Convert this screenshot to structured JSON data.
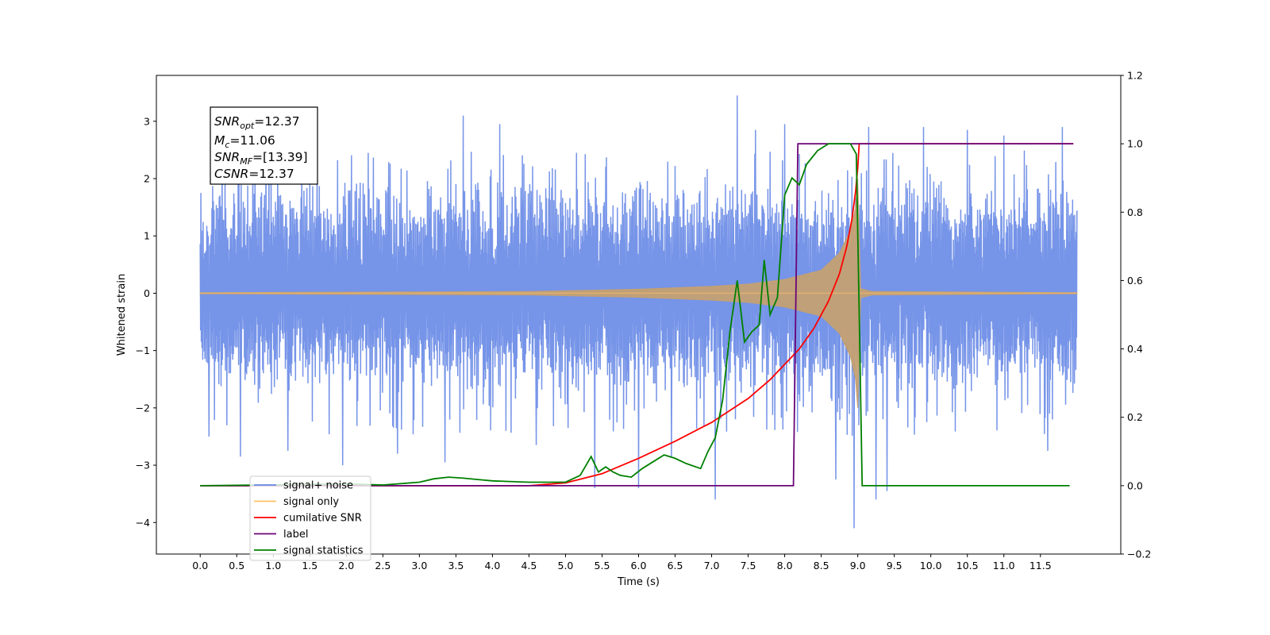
{
  "chart_data": {
    "type": "line",
    "xlabel": "Time (s)",
    "ylabel": "Whitened strain",
    "xlim": [
      -0.6,
      12.6
    ],
    "ylim": [
      -4.55,
      3.8
    ],
    "y2lim": [
      -0.2,
      1.2
    ],
    "grid": false,
    "legend_position": "lower-left",
    "x_ticks": [
      0.0,
      0.5,
      1.0,
      1.5,
      2.0,
      2.5,
      3.0,
      3.5,
      4.0,
      4.5,
      5.0,
      5.5,
      6.0,
      6.5,
      7.0,
      7.5,
      8.0,
      8.5,
      9.0,
      9.5,
      10.0,
      10.5,
      11.0,
      11.5
    ],
    "x_tick_labels": [
      "0.0",
      "0.5",
      "1.0",
      "1.5",
      "2.0",
      "2.5",
      "3.0",
      "3.5",
      "4.0",
      "4.5",
      "5.0",
      "5.5",
      "6.0",
      "6.5",
      "7.0",
      "7.5",
      "8.0",
      "8.5",
      "9.0",
      "9.5",
      "10.0",
      "10.5",
      "11.0",
      "11.5"
    ],
    "y_ticks": [
      -4,
      -3,
      -2,
      -1,
      0,
      1,
      2,
      3
    ],
    "y_tick_labels": [
      "−4",
      "−3",
      "−2",
      "−1",
      "0",
      "1",
      "2",
      "3"
    ],
    "y2_ticks": [
      -0.2,
      0.0,
      0.2,
      0.4,
      0.6,
      0.8,
      1.0,
      1.2
    ],
    "y2_tick_labels": [
      "−0.2",
      "0.0",
      "0.2",
      "0.4",
      "0.6",
      "0.8",
      "1.0",
      "1.2"
    ],
    "noise": {
      "color": "#6a8be6",
      "t_start": 0.0,
      "t_end": 12.0,
      "samples": 2400,
      "band": [
        -1.4,
        1.6
      ],
      "spikes": [
        {
          "x": 0.12,
          "y": -2.5
        },
        {
          "x": 0.3,
          "y": 2.7
        },
        {
          "x": 0.55,
          "y": -2.85
        },
        {
          "x": 0.9,
          "y": 2.65
        },
        {
          "x": 1.2,
          "y": -2.75
        },
        {
          "x": 1.6,
          "y": 2.8
        },
        {
          "x": 1.95,
          "y": -3.0
        },
        {
          "x": 2.3,
          "y": 2.45
        },
        {
          "x": 2.7,
          "y": -2.8
        },
        {
          "x": 3.35,
          "y": -2.95
        },
        {
          "x": 3.6,
          "y": 3.1
        },
        {
          "x": 4.1,
          "y": 2.95
        },
        {
          "x": 4.6,
          "y": -2.65
        },
        {
          "x": 5.15,
          "y": 2.45
        },
        {
          "x": 5.4,
          "y": -3.4
        },
        {
          "x": 6.0,
          "y": -3.4
        },
        {
          "x": 6.45,
          "y": -2.85
        },
        {
          "x": 7.05,
          "y": -3.6
        },
        {
          "x": 7.35,
          "y": 3.45
        },
        {
          "x": 7.6,
          "y": 2.85
        },
        {
          "x": 8.0,
          "y": 2.95
        },
        {
          "x": 8.7,
          "y": -3.25
        },
        {
          "x": 8.95,
          "y": -4.1
        },
        {
          "x": 9.15,
          "y": 2.9
        },
        {
          "x": 9.25,
          "y": -3.6
        },
        {
          "x": 9.4,
          "y": -3.45
        },
        {
          "x": 9.9,
          "y": 2.9
        },
        {
          "x": 10.5,
          "y": 2.85
        },
        {
          "x": 11.0,
          "y": 2.75
        },
        {
          "x": 11.6,
          "y": -2.75
        },
        {
          "x": 11.8,
          "y": 2.9
        }
      ]
    },
    "signal_only": {
      "color": "#c4a072",
      "envelope": [
        {
          "x": 0.0,
          "y": 0.01
        },
        {
          "x": 4.5,
          "y": 0.03
        },
        {
          "x": 6.0,
          "y": 0.07
        },
        {
          "x": 7.0,
          "y": 0.12
        },
        {
          "x": 7.5,
          "y": 0.16
        },
        {
          "x": 8.0,
          "y": 0.24
        },
        {
          "x": 8.5,
          "y": 0.4
        },
        {
          "x": 8.75,
          "y": 0.7
        },
        {
          "x": 8.9,
          "y": 1.1
        },
        {
          "x": 8.97,
          "y": 1.5
        },
        {
          "x": 9.0,
          "y": 2.0
        },
        {
          "x": 9.04,
          "y": 0.08
        },
        {
          "x": 9.2,
          "y": 0.03
        },
        {
          "x": 12.0,
          "y": 0.01
        }
      ]
    },
    "series": [
      {
        "name": "cumilative SNR",
        "axis": "right",
        "color": "#ff0000",
        "x": [
          0.0,
          4.5,
          5.0,
          5.5,
          6.0,
          6.5,
          7.0,
          7.5,
          7.8,
          8.0,
          8.2,
          8.4,
          8.6,
          8.75,
          8.85,
          8.92,
          8.97,
          9.0,
          9.02,
          11.95
        ],
        "y": [
          0.0,
          0.0,
          0.008,
          0.035,
          0.08,
          0.13,
          0.185,
          0.255,
          0.31,
          0.355,
          0.4,
          0.46,
          0.54,
          0.62,
          0.7,
          0.78,
          0.86,
          0.93,
          1.0,
          1.0
        ]
      },
      {
        "name": "label",
        "axis": "right",
        "color": "#6a0577",
        "x": [
          0.0,
          8.12,
          8.18,
          11.95
        ],
        "y": [
          0.0,
          0.0,
          1.0,
          1.0
        ]
      },
      {
        "name": "signal statistics",
        "axis": "right",
        "color": "#008000",
        "x": [
          0.0,
          2.0,
          2.5,
          3.0,
          3.2,
          3.4,
          3.6,
          3.8,
          4.0,
          4.5,
          5.0,
          5.2,
          5.35,
          5.45,
          5.55,
          5.65,
          5.75,
          5.9,
          6.05,
          6.2,
          6.35,
          6.5,
          6.65,
          6.85,
          6.95,
          7.05,
          7.15,
          7.25,
          7.35,
          7.45,
          7.55,
          7.65,
          7.72,
          7.8,
          7.9,
          8.0,
          8.1,
          8.2,
          8.3,
          8.45,
          8.6,
          8.75,
          8.9,
          8.98,
          9.02,
          9.06,
          11.9
        ],
        "y": [
          0.0,
          0.005,
          0.002,
          0.01,
          0.02,
          0.025,
          0.022,
          0.018,
          0.014,
          0.01,
          0.01,
          0.03,
          0.085,
          0.04,
          0.055,
          0.04,
          0.03,
          0.025,
          0.05,
          0.07,
          0.09,
          0.08,
          0.065,
          0.05,
          0.1,
          0.14,
          0.25,
          0.45,
          0.6,
          0.42,
          0.45,
          0.47,
          0.66,
          0.5,
          0.55,
          0.85,
          0.9,
          0.88,
          0.94,
          0.98,
          1.0,
          1.0,
          1.0,
          0.97,
          0.5,
          0.0,
          0.0
        ]
      }
    ],
    "legend": [
      {
        "label": "signal+ noise",
        "color": "#6a8be6"
      },
      {
        "label": "signal only",
        "color": "#ffbf66"
      },
      {
        "label": "cumilative SNR",
        "color": "#ff0000"
      },
      {
        "label": "label",
        "color": "#6a0577"
      },
      {
        "label": "signal statistics",
        "color": "#008000"
      }
    ],
    "annotation": {
      "snr_opt": {
        "base": "SNR",
        "sub": "opt",
        "value": "=12.37"
      },
      "mc": {
        "base": "M",
        "sub": "c",
        "value": "=11.06"
      },
      "snr_mf": {
        "base": "SNR",
        "sub": "MF",
        "value": "=[13.39]"
      },
      "csnr": {
        "base": "CSNR",
        "value": "=12.37"
      }
    }
  }
}
